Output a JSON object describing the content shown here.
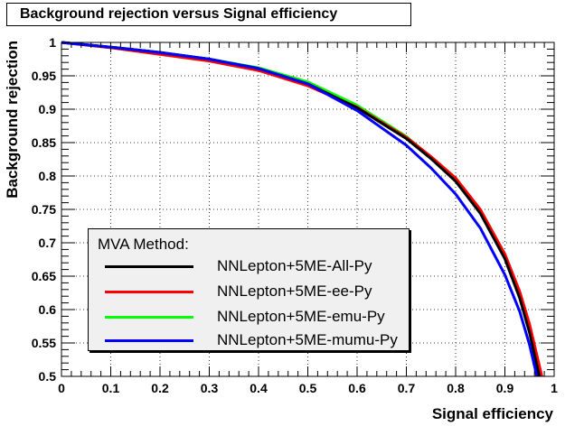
{
  "chart_data": {
    "type": "line",
    "title": "Background rejection versus Signal efficiency",
    "xlabel": "Signal efficiency",
    "ylabel": "Background rejection",
    "xlim": [
      0,
      1
    ],
    "ylim": [
      0.5,
      1
    ],
    "x_ticks": [
      "0",
      "0.1",
      "0.2",
      "0.3",
      "0.4",
      "0.5",
      "0.6",
      "0.7",
      "0.8",
      "0.9",
      "1"
    ],
    "y_ticks": [
      "0.5",
      "0.55",
      "0.6",
      "0.65",
      "0.7",
      "0.75",
      "0.8",
      "0.85",
      "0.9",
      "0.95",
      "1"
    ],
    "grid": true,
    "legend": {
      "header": "MVA Method:",
      "placement": "bottom-left"
    },
    "series": [
      {
        "name": "NNLepton+5ME-All-Py",
        "color": "#000000",
        "x": [
          0,
          0.1,
          0.2,
          0.3,
          0.4,
          0.5,
          0.6,
          0.7,
          0.75,
          0.8,
          0.85,
          0.9,
          0.93,
          0.95,
          0.97
        ],
        "y": [
          1,
          0.993,
          0.985,
          0.975,
          0.961,
          0.938,
          0.902,
          0.856,
          0.826,
          0.792,
          0.744,
          0.676,
          0.617,
          0.565,
          0.5
        ]
      },
      {
        "name": "NNLepton+5ME-ee-Py",
        "color": "#ff0000",
        "x": [
          0,
          0.1,
          0.2,
          0.3,
          0.4,
          0.5,
          0.6,
          0.7,
          0.75,
          0.8,
          0.85,
          0.9,
          0.93,
          0.95,
          0.975
        ],
        "y": [
          1,
          0.992,
          0.982,
          0.972,
          0.958,
          0.935,
          0.903,
          0.858,
          0.829,
          0.797,
          0.75,
          0.683,
          0.627,
          0.578,
          0.5
        ]
      },
      {
        "name": "NNLepton+5ME-emu-Py",
        "color": "#00ff00",
        "x": [
          0,
          0.1,
          0.2,
          0.3,
          0.4,
          0.5,
          0.6,
          0.7,
          0.75,
          0.8,
          0.85,
          0.9,
          0.93,
          0.95,
          0.972
        ],
        "y": [
          1,
          0.993,
          0.985,
          0.975,
          0.962,
          0.941,
          0.906,
          0.859,
          0.828,
          0.793,
          0.746,
          0.679,
          0.62,
          0.569,
          0.5
        ]
      },
      {
        "name": "NNLepton+5ME-mumu-Py",
        "color": "#0000ff",
        "x": [
          0,
          0.1,
          0.2,
          0.3,
          0.4,
          0.5,
          0.6,
          0.7,
          0.75,
          0.8,
          0.85,
          0.9,
          0.93,
          0.95,
          0.965
        ],
        "y": [
          1,
          0.993,
          0.985,
          0.975,
          0.961,
          0.938,
          0.898,
          0.846,
          0.812,
          0.773,
          0.722,
          0.652,
          0.597,
          0.547,
          0.5
        ]
      }
    ]
  }
}
